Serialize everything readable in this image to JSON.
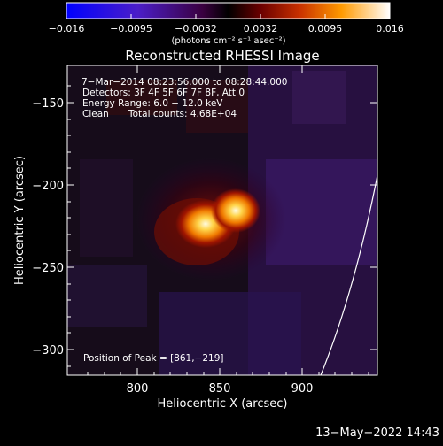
{
  "colorbar": {
    "ticks": [
      "−0.016",
      "−0.0095",
      "−0.0032",
      "0.0032",
      "0.0095",
      "0.016"
    ],
    "units": "(photons cm⁻² s⁻¹ asec⁻²)"
  },
  "title": "Reconstructed RHESSI Image",
  "info": {
    "time_range": "7−Mar−2014 08:23:56.000 to 08:28:44.000",
    "detectors": "Detectors: 3F 4F 5F 6F 7F 8F, Att 0",
    "energy": "Energy Range: 6.0 − 12.0 keV",
    "method": "Clean",
    "counts": "Total counts: 4.68E+04",
    "peak": "Position of Peak = [861,−219]"
  },
  "axes": {
    "xlabel": "Heliocentric X (arcsec)",
    "ylabel": "Heliocentric Y (arcsec)",
    "xticks": [
      "800",
      "850",
      "900"
    ],
    "yticks": [
      "−150",
      "−200",
      "−250",
      "−300"
    ]
  },
  "footer": {
    "date": "13−May−2022 14:43"
  },
  "colors": {
    "background": "#000000",
    "limb": "#ffffff",
    "text": "#ffffff"
  }
}
